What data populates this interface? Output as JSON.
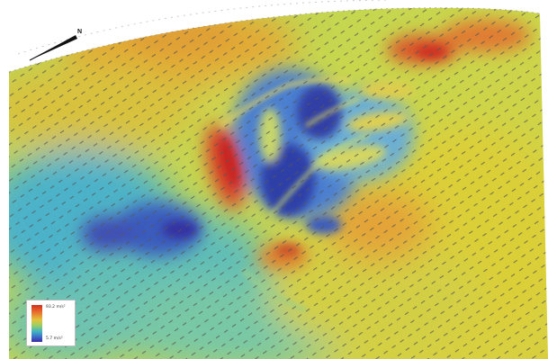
{
  "compass": {
    "label": "N",
    "icon": "north-arrow-icon"
  },
  "legend": {
    "max_label": "93.2 m/s²",
    "min_label": "5.7 m/s²",
    "colors": [
      "#cf2e1c",
      "#e8692c",
      "#e4c33a",
      "#9ccf63",
      "#3fb3c4",
      "#3d6fc7",
      "#3a2aa4"
    ]
  }
}
